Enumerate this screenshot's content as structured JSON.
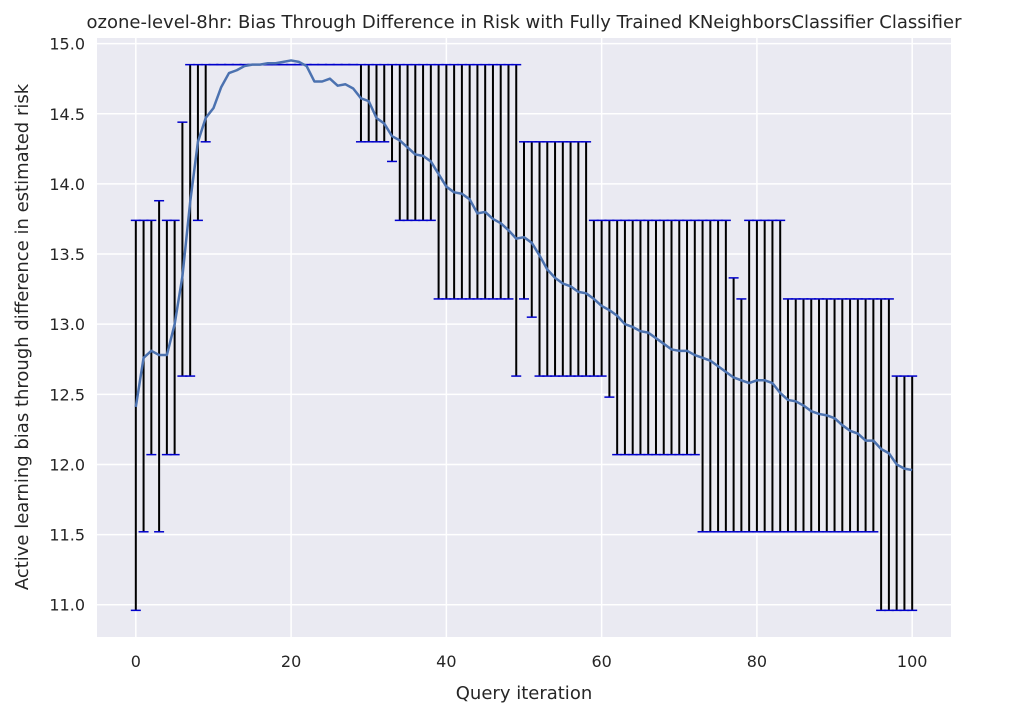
{
  "chart_data": {
    "type": "line",
    "title": "ozone-level-8hr: Bias Through Difference in Risk with Fully Trained KNeighborsClassifier Classifier",
    "xlabel": "Query iteration",
    "ylabel": "Active learning bias through difference in estimated risk",
    "xlim": [
      -5,
      105
    ],
    "ylim": [
      10.77,
      15.04
    ],
    "xticks": [
      0,
      20,
      40,
      60,
      80,
      100
    ],
    "yticks": [
      11.0,
      11.5,
      12.0,
      12.5,
      13.0,
      13.5,
      14.0,
      14.5,
      15.0
    ],
    "grid": true,
    "line_color": "#4c72b0",
    "errorbar_color": "#000000",
    "cap_color": "#0000cc",
    "background": "#eaeaf2",
    "x": [
      0,
      1,
      2,
      3,
      4,
      5,
      6,
      7,
      8,
      9,
      10,
      11,
      12,
      13,
      14,
      15,
      16,
      17,
      18,
      19,
      20,
      21,
      22,
      23,
      24,
      25,
      26,
      27,
      28,
      29,
      30,
      31,
      32,
      33,
      34,
      35,
      36,
      37,
      38,
      39,
      40,
      41,
      42,
      43,
      44,
      45,
      46,
      47,
      48,
      49,
      50,
      51,
      52,
      53,
      54,
      55,
      56,
      57,
      58,
      59,
      60,
      61,
      62,
      63,
      64,
      65,
      66,
      67,
      68,
      69,
      70,
      71,
      72,
      73,
      74,
      75,
      76,
      77,
      78,
      79,
      80,
      81,
      82,
      83,
      84,
      85,
      86,
      87,
      88,
      89,
      90,
      91,
      92,
      93,
      94,
      95,
      96,
      97,
      98,
      99,
      100
    ],
    "y": [
      12.41,
      12.76,
      12.81,
      12.78,
      12.78,
      13.0,
      13.34,
      13.87,
      14.3,
      14.47,
      14.54,
      14.69,
      14.79,
      14.81,
      14.84,
      14.85,
      14.85,
      14.86,
      14.86,
      14.87,
      14.88,
      14.87,
      14.84,
      14.73,
      14.73,
      14.75,
      14.7,
      14.71,
      14.68,
      14.61,
      14.59,
      14.47,
      14.43,
      14.34,
      14.31,
      14.26,
      14.21,
      14.2,
      14.16,
      14.07,
      13.98,
      13.94,
      13.93,
      13.89,
      13.79,
      13.8,
      13.75,
      13.72,
      13.67,
      13.61,
      13.62,
      13.58,
      13.49,
      13.39,
      13.33,
      13.29,
      13.27,
      13.23,
      13.22,
      13.18,
      13.13,
      13.1,
      13.06,
      13.0,
      12.98,
      12.95,
      12.94,
      12.9,
      12.86,
      12.82,
      12.81,
      12.81,
      12.78,
      12.76,
      12.74,
      12.7,
      12.66,
      12.62,
      12.6,
      12.58,
      12.6,
      12.6,
      12.58,
      12.51,
      12.46,
      12.45,
      12.42,
      12.38,
      12.36,
      12.35,
      12.33,
      12.28,
      12.24,
      12.22,
      12.17,
      12.17,
      12.11,
      12.08,
      12.0,
      11.97,
      11.96
    ],
    "err_low": [
      10.96,
      11.52,
      12.07,
      11.52,
      12.07,
      12.07,
      12.63,
      12.63,
      13.74,
      14.3,
      14.85,
      14.85,
      14.85,
      14.85,
      14.85,
      14.85,
      14.85,
      14.85,
      14.85,
      14.85,
      14.85,
      14.85,
      14.85,
      14.85,
      14.85,
      14.85,
      14.85,
      14.85,
      14.85,
      14.3,
      14.3,
      14.3,
      14.3,
      14.16,
      13.74,
      13.74,
      13.74,
      13.74,
      13.74,
      13.18,
      13.18,
      13.18,
      13.18,
      13.18,
      13.18,
      13.18,
      13.18,
      13.18,
      13.18,
      12.63,
      13.18,
      13.05,
      12.63,
      12.63,
      12.63,
      12.63,
      12.63,
      12.63,
      12.63,
      12.63,
      12.63,
      12.48,
      12.07,
      12.07,
      12.07,
      12.07,
      12.07,
      12.07,
      12.07,
      12.07,
      12.07,
      12.07,
      12.07,
      11.52,
      11.52,
      11.52,
      11.52,
      11.52,
      11.52,
      11.52,
      11.52,
      11.52,
      11.52,
      11.52,
      11.52,
      11.52,
      11.52,
      11.52,
      11.52,
      11.52,
      11.52,
      11.52,
      11.52,
      11.52,
      11.52,
      11.52,
      10.96,
      10.96,
      10.96,
      10.96,
      10.96
    ],
    "err_high": [
      13.74,
      13.74,
      13.74,
      13.88,
      13.74,
      13.74,
      14.44,
      14.85,
      14.85,
      14.85,
      14.85,
      14.85,
      14.85,
      14.85,
      14.85,
      14.85,
      14.85,
      14.85,
      14.85,
      14.85,
      14.85,
      14.85,
      14.85,
      14.85,
      14.85,
      14.85,
      14.85,
      14.85,
      14.85,
      14.85,
      14.85,
      14.85,
      14.85,
      14.85,
      14.85,
      14.85,
      14.85,
      14.85,
      14.85,
      14.85,
      14.85,
      14.85,
      14.85,
      14.85,
      14.85,
      14.85,
      14.85,
      14.85,
      14.85,
      14.85,
      14.3,
      14.3,
      14.3,
      14.3,
      14.3,
      14.3,
      14.3,
      14.3,
      14.3,
      13.74,
      13.74,
      13.74,
      13.74,
      13.74,
      13.74,
      13.74,
      13.74,
      13.74,
      13.74,
      13.74,
      13.74,
      13.74,
      13.74,
      13.74,
      13.74,
      13.74,
      13.74,
      13.33,
      13.18,
      13.74,
      13.74,
      13.74,
      13.74,
      13.74,
      13.18,
      13.18,
      13.18,
      13.18,
      13.18,
      13.18,
      13.18,
      13.18,
      13.18,
      13.18,
      13.18,
      13.18,
      13.18,
      13.18,
      12.63,
      12.63,
      12.63
    ]
  }
}
